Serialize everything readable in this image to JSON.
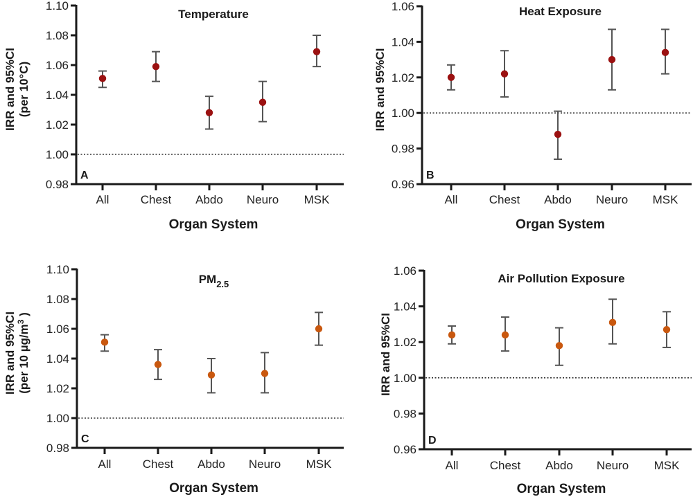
{
  "figure": {
    "panels_count": 4
  },
  "chart_data": [
    {
      "panel": "A",
      "type": "scatter",
      "subtype": "point-with-error-bars",
      "title": "Temperature",
      "title_sub": "",
      "xlabel": "Organ System",
      "ylabel_line1": "IRR and 95%CI",
      "ylabel_line2": "(per 10°C)",
      "categories": [
        "All",
        "Chest",
        "Abdo",
        "Neuro",
        "MSK"
      ],
      "series": [
        {
          "name": "IRR",
          "values": [
            1.051,
            1.059,
            1.028,
            1.035,
            1.069
          ],
          "ci_lower": [
            1.045,
            1.049,
            1.017,
            1.022,
            1.059
          ],
          "ci_upper": [
            1.056,
            1.069,
            1.039,
            1.049,
            1.08
          ]
        }
      ],
      "ylim": [
        0.98,
        1.1
      ],
      "yticks": [
        "0.98",
        "1.00",
        "1.02",
        "1.04",
        "1.06",
        "1.08",
        "1.10"
      ],
      "reference_line": 1.0,
      "marker_color": "#9b1111",
      "grid": false
    },
    {
      "panel": "B",
      "type": "scatter",
      "subtype": "point-with-error-bars",
      "title": "Heat Exposure",
      "title_sub": "",
      "xlabel": "Organ System",
      "ylabel_line1": "IRR and 95%CI",
      "ylabel_line2": "",
      "categories": [
        "All",
        "Chest",
        "Abdo",
        "Neuro",
        "MSK"
      ],
      "series": [
        {
          "name": "IRR",
          "values": [
            1.02,
            1.022,
            0.988,
            1.03,
            1.034
          ],
          "ci_lower": [
            1.013,
            1.009,
            0.974,
            1.013,
            1.022
          ],
          "ci_upper": [
            1.027,
            1.035,
            1.001,
            1.047,
            1.047
          ]
        }
      ],
      "ylim": [
        0.96,
        1.06
      ],
      "yticks": [
        "0.96",
        "0.98",
        "1.00",
        "1.02",
        "1.04",
        "1.06"
      ],
      "reference_line": 1.0,
      "marker_color": "#9b1111",
      "grid": false
    },
    {
      "panel": "C",
      "type": "scatter",
      "subtype": "point-with-error-bars",
      "title": "PM",
      "title_sub": "2.5",
      "xlabel": "Organ System",
      "ylabel_line1": "IRR and 95%CI",
      "ylabel_line2": "(per 10 µg/m",
      "ylabel_line2_sup": "3",
      "ylabel_line2_end": " )",
      "categories": [
        "All",
        "Chest",
        "Abdo",
        "Neuro",
        "MSK"
      ],
      "series": [
        {
          "name": "IRR",
          "values": [
            1.051,
            1.036,
            1.029,
            1.03,
            1.06
          ],
          "ci_lower": [
            1.045,
            1.026,
            1.017,
            1.017,
            1.049
          ],
          "ci_upper": [
            1.056,
            1.046,
            1.04,
            1.044,
            1.071
          ]
        }
      ],
      "ylim": [
        0.98,
        1.1
      ],
      "yticks": [
        "0.98",
        "1.00",
        "1.02",
        "1.04",
        "1.06",
        "1.08",
        "1.10"
      ],
      "reference_line": 1.0,
      "marker_color": "#c9580f",
      "grid": false
    },
    {
      "panel": "D",
      "type": "scatter",
      "subtype": "point-with-error-bars",
      "title": "Air Pollution Exposure",
      "title_sub": "",
      "xlabel": "Organ System",
      "ylabel_line1": "IRR and 95%CI",
      "ylabel_line2": "",
      "categories": [
        "All",
        "Chest",
        "Abdo",
        "Neuro",
        "MSK"
      ],
      "series": [
        {
          "name": "IRR",
          "values": [
            1.024,
            1.024,
            1.018,
            1.031,
            1.027
          ],
          "ci_lower": [
            1.019,
            1.015,
            1.007,
            1.019,
            1.017
          ],
          "ci_upper": [
            1.029,
            1.034,
            1.028,
            1.044,
            1.037
          ]
        }
      ],
      "ylim": [
        0.96,
        1.06
      ],
      "yticks": [
        "0.96",
        "0.98",
        "1.00",
        "1.02",
        "1.04",
        "1.06"
      ],
      "reference_line": 1.0,
      "marker_color": "#c9580f",
      "grid": false
    }
  ]
}
